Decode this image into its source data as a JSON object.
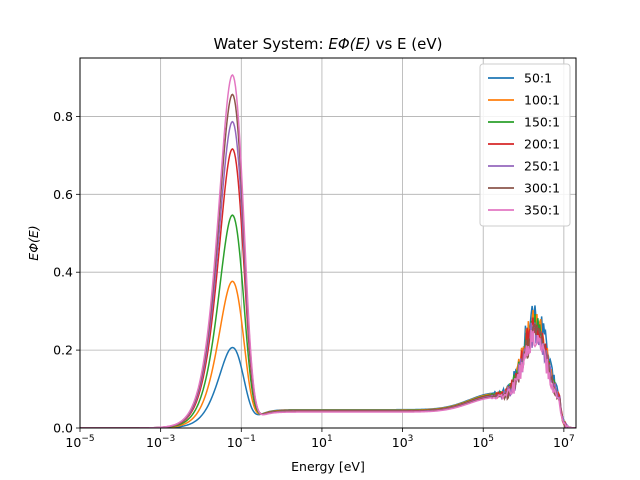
{
  "chart_data": {
    "type": "line",
    "title": "Water System: EΦ(E) vs E (eV)",
    "title_parts": {
      "prefix": "Water System: ",
      "math": "EΦ(E)",
      "suffix": " vs E (eV)"
    },
    "xlabel": "Energy [eV]",
    "ylabel": "EΦ(E)",
    "xscale": "log",
    "xlim": [
      1e-05,
      20000000.0
    ],
    "ylim": [
      0.0,
      0.95
    ],
    "xticks": [
      {
        "value": 1e-05,
        "base": "10",
        "exp": "−5"
      },
      {
        "value": 0.001,
        "base": "10",
        "exp": "−3"
      },
      {
        "value": 0.1,
        "base": "10",
        "exp": "−1"
      },
      {
        "value": 10.0,
        "base": "10",
        "exp": "1"
      },
      {
        "value": 1000.0,
        "base": "10",
        "exp": "3"
      },
      {
        "value": 100000.0,
        "base": "10",
        "exp": "5"
      },
      {
        "value": 10000000.0,
        "base": "10",
        "exp": "7"
      }
    ],
    "yticks": [
      "0.0",
      "0.2",
      "0.4",
      "0.6",
      "0.8"
    ],
    "grid": true,
    "legend_position": "top-right",
    "series": [
      {
        "name": "50:1",
        "color": "#1f77b4",
        "thermal_peak": 0.205,
        "fast_peak": 0.3,
        "plateau": 0.047
      },
      {
        "name": "100:1",
        "color": "#ff7f0e",
        "thermal_peak": 0.375,
        "fast_peak": 0.27,
        "plateau": 0.046
      },
      {
        "name": "150:1",
        "color": "#2ca02c",
        "thermal_peak": 0.545,
        "fast_peak": 0.26,
        "plateau": 0.045
      },
      {
        "name": "200:1",
        "color": "#d62728",
        "thermal_peak": 0.715,
        "fast_peak": 0.26,
        "plateau": 0.044
      },
      {
        "name": "250:1",
        "color": "#9467bd",
        "thermal_peak": 0.785,
        "fast_peak": 0.24,
        "plateau": 0.043
      },
      {
        "name": "300:1",
        "color": "#8c564b",
        "thermal_peak": 0.855,
        "fast_peak": 0.23,
        "plateau": 0.042
      },
      {
        "name": "350:1",
        "color": "#e377c2",
        "thermal_peak": 0.905,
        "fast_peak": 0.22,
        "plateau": 0.041
      }
    ],
    "thermal_peak_energy": 0.06,
    "fast_peak_energy": 2000000.0
  }
}
